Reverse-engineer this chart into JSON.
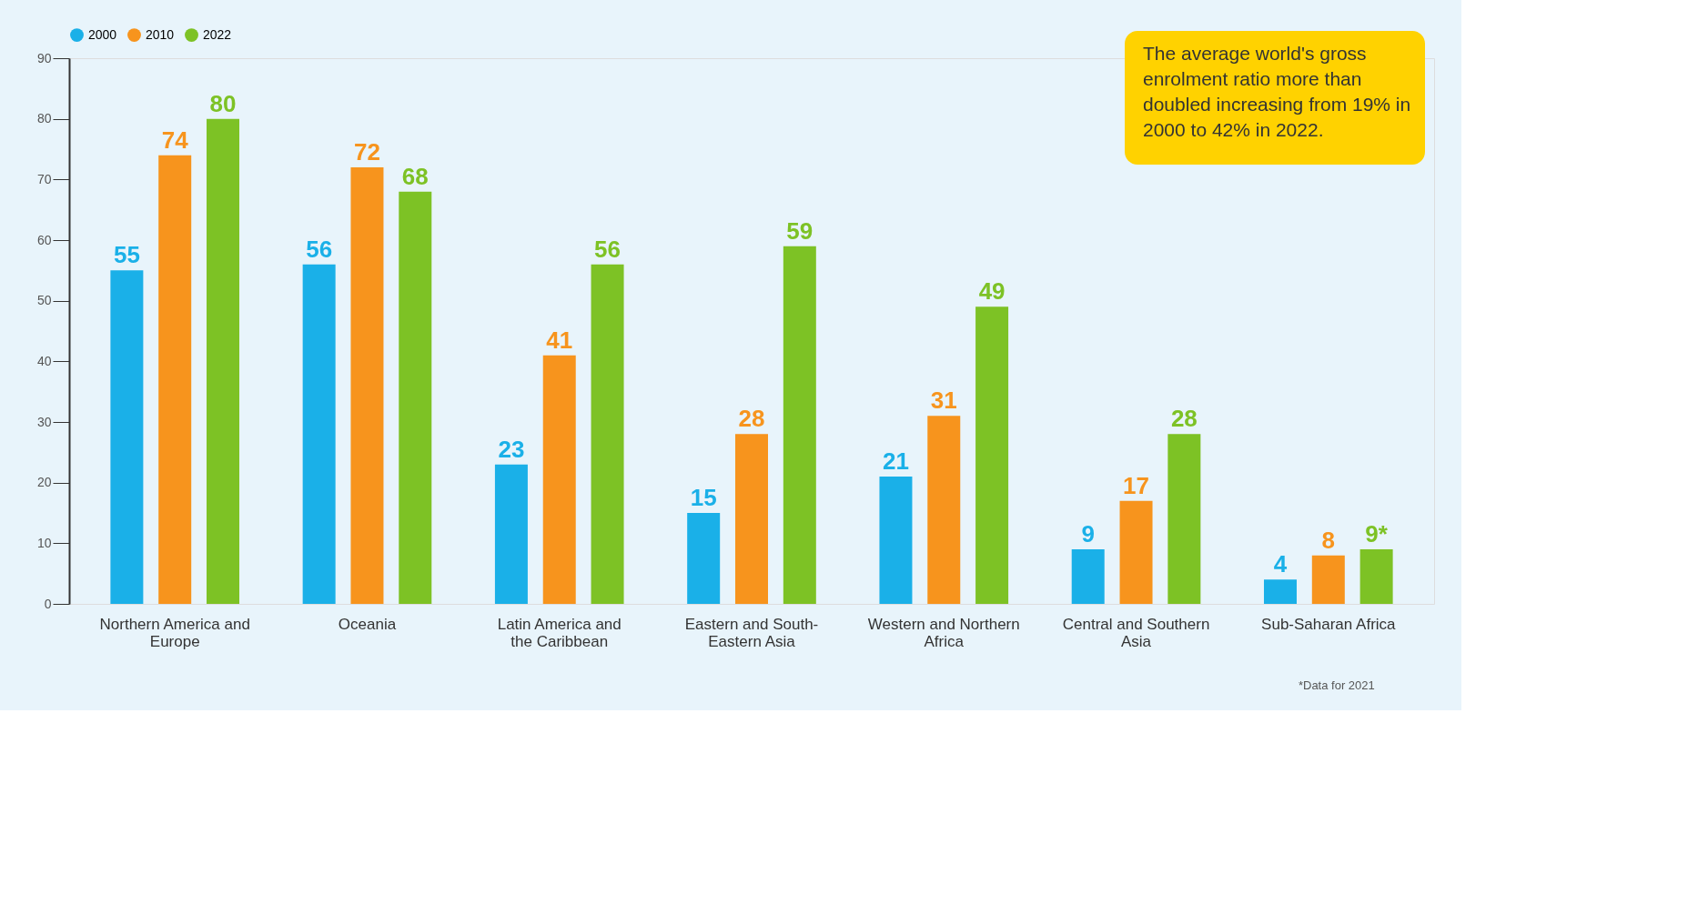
{
  "chart_data": {
    "type": "bar",
    "categories": [
      "Northern America and Europe",
      "Oceania",
      "Latin America and the Caribbean",
      "Eastern and South-Eastern Asia",
      "Western and Northern Africa",
      "Central and Southern Asia",
      "Sub-Saharan Africa"
    ],
    "series": [
      {
        "name": "2000",
        "color": "#1ab0e8",
        "values": [
          55,
          56,
          23,
          15,
          21,
          9,
          4
        ],
        "value_labels": [
          "55",
          "56",
          "23",
          "15",
          "21",
          "9",
          "4"
        ]
      },
      {
        "name": "2010",
        "color": "#f7941d",
        "values": [
          74,
          72,
          41,
          28,
          31,
          17,
          8
        ],
        "value_labels": [
          "74",
          "72",
          "41",
          "28",
          "31",
          "17",
          "8"
        ]
      },
      {
        "name": "2022",
        "color": "#7dc225",
        "values": [
          80,
          68,
          56,
          59,
          49,
          28,
          9
        ],
        "value_labels": [
          "80",
          "68",
          "56",
          "59",
          "49",
          "28",
          "9*"
        ]
      }
    ],
    "ylim": [
      0,
      90
    ],
    "yticks": [
      0,
      10,
      20,
      30,
      40,
      50,
      60,
      70,
      80,
      90
    ],
    "grid": false,
    "legend": "top left",
    "annotations": [
      "The average world's gross enrolment ratio more than doubled increasing from 19% in 2000 to 42% in 2022.",
      "*Data for 2021"
    ]
  }
}
